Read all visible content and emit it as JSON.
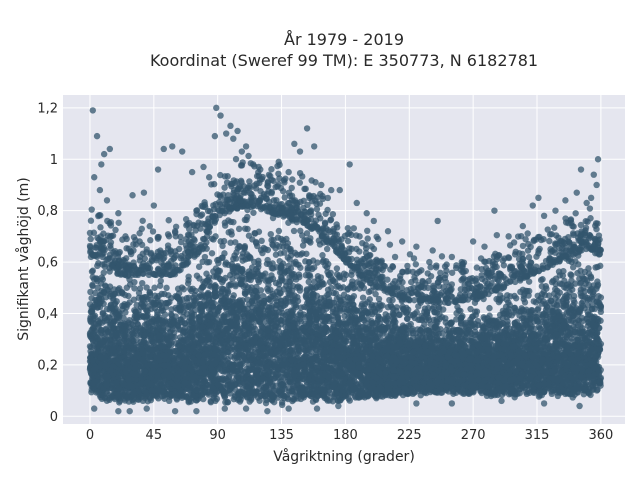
{
  "chart_data": {
    "type": "scatter",
    "title": "År 1979 - 2019",
    "subtitle": "Koordinat (Sweref 99 TM): E 350773, N 6182781",
    "xlabel": "Vågriktning (grader)",
    "ylabel": "Signifikant våghöjd (m)",
    "xlim": [
      -19,
      377
    ],
    "ylim": [
      -0.03,
      1.25
    ],
    "x_ticks": [
      0,
      45,
      90,
      135,
      180,
      225,
      270,
      315,
      360
    ],
    "x_tick_labels": [
      "0",
      "45",
      "90",
      "135",
      "180",
      "225",
      "270",
      "315",
      "360"
    ],
    "y_ticks": [
      0,
      0.2,
      0.4,
      0.6,
      0.8,
      1.0,
      1.2
    ],
    "y_tick_labels": [
      "0",
      "0,2",
      "0,4",
      "0,6",
      "0,8",
      "1",
      "1,2"
    ],
    "grid": true,
    "marker_color": "#33566e",
    "background_color": "#e5e6ef",
    "dense_band_envelope": {
      "x": [
        0,
        10,
        20,
        45,
        60,
        80,
        90,
        110,
        135,
        160,
        180,
        200,
        225,
        250,
        270,
        300,
        330,
        350,
        360
      ],
      "y_low": [
        0.08,
        0.05,
        0.05,
        0.05,
        0.05,
        0.05,
        0.04,
        0.04,
        0.04,
        0.05,
        0.05,
        0.06,
        0.08,
        0.08,
        0.08,
        0.07,
        0.07,
        0.07,
        0.08
      ],
      "y_high": [
        0.62,
        0.62,
        0.55,
        0.55,
        0.55,
        0.65,
        0.78,
        0.82,
        0.78,
        0.72,
        0.6,
        0.5,
        0.45,
        0.44,
        0.45,
        0.52,
        0.6,
        0.65,
        0.62
      ]
    },
    "outlier_points": [
      {
        "x": 2,
        "y": 1.19
      },
      {
        "x": 5,
        "y": 1.09
      },
      {
        "x": 3,
        "y": 0.93
      },
      {
        "x": 8,
        "y": 0.98
      },
      {
        "x": 10,
        "y": 1.02
      },
      {
        "x": 14,
        "y": 1.04
      },
      {
        "x": 7,
        "y": 0.88
      },
      {
        "x": 12,
        "y": 0.84
      },
      {
        "x": 20,
        "y": 0.79
      },
      {
        "x": 30,
        "y": 0.86
      },
      {
        "x": 38,
        "y": 0.87
      },
      {
        "x": 45,
        "y": 0.82
      },
      {
        "x": 48,
        "y": 0.96
      },
      {
        "x": 52,
        "y": 1.04
      },
      {
        "x": 58,
        "y": 1.05
      },
      {
        "x": 65,
        "y": 1.03
      },
      {
        "x": 72,
        "y": 0.95
      },
      {
        "x": 80,
        "y": 0.97
      },
      {
        "x": 84,
        "y": 0.93
      },
      {
        "x": 88,
        "y": 1.09
      },
      {
        "x": 89,
        "y": 1.2
      },
      {
        "x": 92,
        "y": 1.17
      },
      {
        "x": 96,
        "y": 1.1
      },
      {
        "x": 99,
        "y": 1.13
      },
      {
        "x": 101,
        "y": 1.08
      },
      {
        "x": 104,
        "y": 1.11
      },
      {
        "x": 107,
        "y": 1.03
      },
      {
        "x": 110,
        "y": 1.05
      },
      {
        "x": 115,
        "y": 0.98
      },
      {
        "x": 120,
        "y": 0.96
      },
      {
        "x": 128,
        "y": 0.92
      },
      {
        "x": 133,
        "y": 0.99
      },
      {
        "x": 140,
        "y": 0.95
      },
      {
        "x": 144,
        "y": 1.06
      },
      {
        "x": 148,
        "y": 1.03
      },
      {
        "x": 153,
        "y": 1.12
      },
      {
        "x": 158,
        "y": 1.05
      },
      {
        "x": 163,
        "y": 0.9
      },
      {
        "x": 170,
        "y": 0.88
      },
      {
        "x": 176,
        "y": 0.88
      },
      {
        "x": 183,
        "y": 0.98
      },
      {
        "x": 188,
        "y": 0.83
      },
      {
        "x": 195,
        "y": 0.79
      },
      {
        "x": 200,
        "y": 0.76
      },
      {
        "x": 210,
        "y": 0.72
      },
      {
        "x": 220,
        "y": 0.68
      },
      {
        "x": 230,
        "y": 0.66
      },
      {
        "x": 245,
        "y": 0.76
      },
      {
        "x": 255,
        "y": 0.62
      },
      {
        "x": 262,
        "y": 0.6
      },
      {
        "x": 270,
        "y": 0.68
      },
      {
        "x": 278,
        "y": 0.66
      },
      {
        "x": 285,
        "y": 0.8
      },
      {
        "x": 295,
        "y": 0.7
      },
      {
        "x": 305,
        "y": 0.74
      },
      {
        "x": 312,
        "y": 0.82
      },
      {
        "x": 316,
        "y": 0.85
      },
      {
        "x": 320,
        "y": 0.78
      },
      {
        "x": 328,
        "y": 0.8
      },
      {
        "x": 335,
        "y": 0.84
      },
      {
        "x": 343,
        "y": 0.87
      },
      {
        "x": 346,
        "y": 0.96
      },
      {
        "x": 350,
        "y": 0.83
      },
      {
        "x": 355,
        "y": 0.94
      },
      {
        "x": 358,
        "y": 1.0
      },
      {
        "x": 357,
        "y": 0.9
      },
      {
        "x": 25,
        "y": 0.7
      },
      {
        "x": 35,
        "y": 0.68
      },
      {
        "x": 60,
        "y": 0.72
      },
      {
        "x": 75,
        "y": 0.8
      },
      {
        "x": 190,
        "y": 0.7
      },
      {
        "x": 215,
        "y": 0.62
      },
      {
        "x": 240,
        "y": 0.58
      },
      {
        "x": 300,
        "y": 0.64
      },
      {
        "x": 340,
        "y": 0.74
      },
      {
        "x": 3,
        "y": 0.03
      },
      {
        "x": 20,
        "y": 0.02
      },
      {
        "x": 28,
        "y": 0.02
      },
      {
        "x": 40,
        "y": 0.03
      },
      {
        "x": 60,
        "y": 0.02
      },
      {
        "x": 75,
        "y": 0.02
      },
      {
        "x": 95,
        "y": 0.03
      },
      {
        "x": 110,
        "y": 0.03
      },
      {
        "x": 125,
        "y": 0.02
      },
      {
        "x": 140,
        "y": 0.03
      },
      {
        "x": 160,
        "y": 0.03
      },
      {
        "x": 175,
        "y": 0.04
      },
      {
        "x": 230,
        "y": 0.05
      },
      {
        "x": 255,
        "y": 0.05
      },
      {
        "x": 290,
        "y": 0.06
      },
      {
        "x": 320,
        "y": 0.05
      },
      {
        "x": 345,
        "y": 0.04
      }
    ]
  }
}
